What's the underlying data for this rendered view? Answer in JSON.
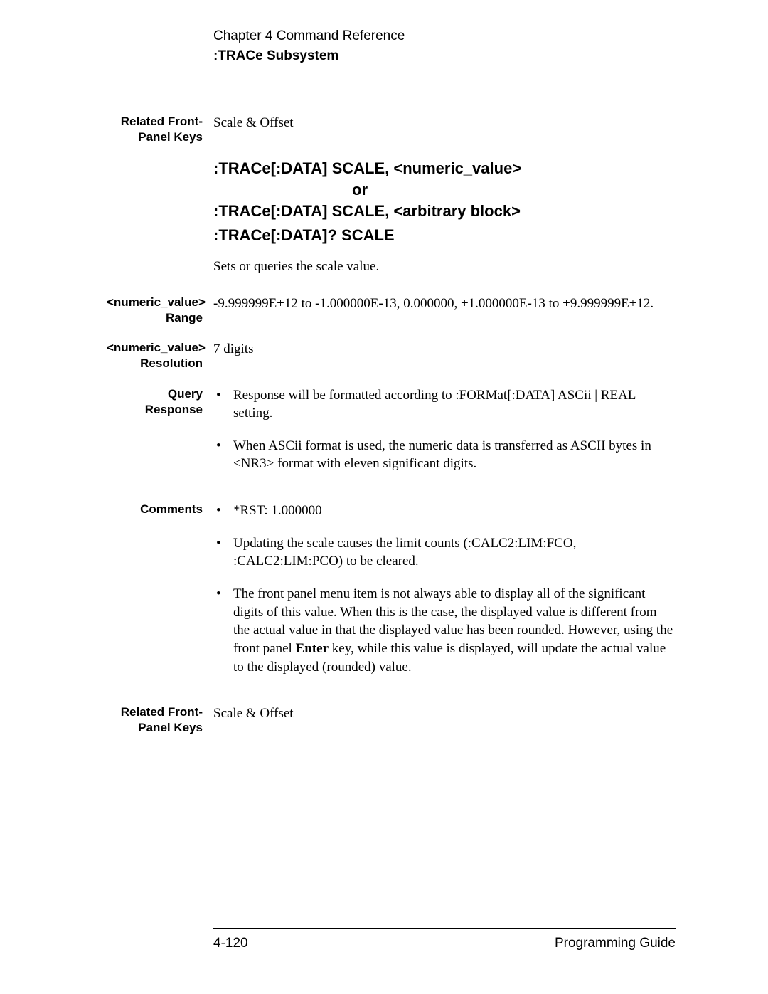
{
  "header": {
    "chapter": "Chapter 4  Command Reference",
    "subsystem": ":TRACe Subsystem"
  },
  "section1": {
    "label": "Related Front-Panel Keys",
    "value": "Scale & Offset"
  },
  "commands": {
    "line1": ":TRACe[:DATA]    SCALE,   <numeric_value>",
    "or": "or",
    "line2": ":TRACe[:DATA]    SCALE,   <arbitrary block>",
    "query": ":TRACe[:DATA]?   SCALE",
    "description": "Sets or queries the scale value."
  },
  "range": {
    "label": "<numeric_value> Range",
    "value": "-9.999999E+12 to -1.000000E-13, 0.000000, +1.000000E-13 to +9.999999E+12."
  },
  "resolution": {
    "label": "<numeric_value> Resolution",
    "value": "7 digits"
  },
  "queryResponse": {
    "label": "Query Response",
    "bullet1": "Response will be formatted according to :FORMat[:DATA]  ASCii | REAL setting.",
    "bullet2": "When ASCii format is used, the numeric data is transferred as ASCII bytes in <NR3> format with eleven significant digits."
  },
  "comments": {
    "label": "Comments",
    "bullet1": "*RST: 1.000000",
    "bullet2": "Updating the scale causes the limit counts (:CALC2:LIM:FCO, :CALC2:LIM:PCO) to be cleared.",
    "bullet3_pre": "The front panel menu item is not always able to display all of the significant digits of this value. When this is the case, the displayed value is different from the actual value in that the displayed value has been rounded. However, using the front panel ",
    "bullet3_bold": "Enter",
    "bullet3_post": " key, while this value is displayed, will update the actual value to the displayed (rounded) value."
  },
  "section2": {
    "label": "Related Front-Panel Keys",
    "value": "Scale & Offset"
  },
  "footer": {
    "pageNum": "4-120",
    "guide": "Programming Guide"
  }
}
